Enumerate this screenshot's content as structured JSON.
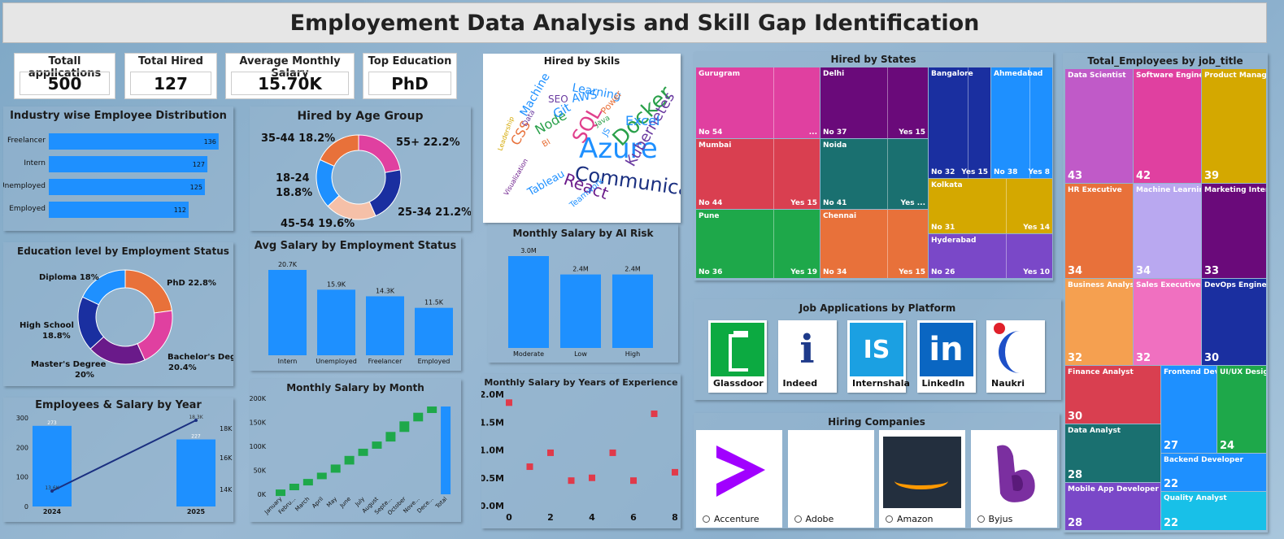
{
  "title": "Employement Data Analysis and Skill Gap Identification",
  "kpis": [
    {
      "label": "Totall applications",
      "value": "500"
    },
    {
      "label": "Total Hired",
      "value": "127"
    },
    {
      "label": "Average Monthly Salary",
      "value": "15.70K"
    },
    {
      "label": "Top Education",
      "value": "PhD"
    }
  ],
  "industry": {
    "title": "Industry wise Employee Distribution",
    "chart_data": {
      "type": "bar",
      "categories": [
        "Freelancer",
        "Intern",
        "Unemployed",
        "Employed"
      ],
      "values": [
        136,
        127,
        125,
        112
      ]
    }
  },
  "age_group": {
    "title": "Hired by Age Group",
    "chart_data": {
      "type": "pie",
      "labels": [
        "55+",
        "25-34",
        "45-54",
        "18-24",
        "35-44"
      ],
      "values": [
        22.2,
        21.2,
        19.6,
        18.8,
        18.2
      ],
      "label_text": [
        "55+ 22.2%",
        "25-34 21.2%",
        "45-54 19.6%",
        "18-24",
        "18.8%",
        "35-44 18.2%"
      ],
      "colors": [
        "#e040a0",
        "#1a2fa0",
        "#f5c0a8",
        "#1e90ff",
        "#e8713a"
      ]
    }
  },
  "skills": {
    "title": "Hired by Skils",
    "words": [
      {
        "t": "Azure",
        "s": 34,
        "c": "#1e90ff"
      },
      {
        "t": "Communication",
        "s": 24,
        "c": "#1a2f80"
      },
      {
        "t": "Docker",
        "s": 26,
        "c": "#2aa04a"
      },
      {
        "t": "SQL",
        "s": 24,
        "c": "#e0408c"
      },
      {
        "t": "Kubernetes",
        "s": 18,
        "c": "#6a3aa0"
      },
      {
        "t": "React",
        "s": 20,
        "c": "#6a1a8a"
      },
      {
        "t": "Excel",
        "s": 16,
        "c": "#1e90ff"
      },
      {
        "t": "Node",
        "s": 16,
        "c": "#2aa04a"
      },
      {
        "t": "CSS",
        "s": 16,
        "c": "#e8713a"
      },
      {
        "t": "Git",
        "s": 15,
        "c": "#1e90ff"
      },
      {
        "t": "AWS",
        "s": 14,
        "c": "#1e90ff"
      },
      {
        "t": "Learning",
        "s": 14,
        "c": "#1e90ff"
      },
      {
        "t": "Machine",
        "s": 14,
        "c": "#1e90ff"
      },
      {
        "t": "SEO",
        "s": 12,
        "c": "#6a3aa0"
      },
      {
        "t": "Tableau",
        "s": 13,
        "c": "#1e90ff"
      },
      {
        "t": "Power",
        "s": 11,
        "c": "#e8713a"
      },
      {
        "t": "BI",
        "s": 10,
        "c": "#e8713a"
      },
      {
        "t": "JS",
        "s": 10,
        "c": "#1e90ff"
      },
      {
        "t": "Java",
        "s": 9,
        "c": "#2aa04a"
      },
      {
        "t": "Data",
        "s": 9,
        "c": "#6a3aa0"
      },
      {
        "t": "Teamwork",
        "s": 10,
        "c": "#1e90ff"
      },
      {
        "t": "Visualization",
        "s": 8,
        "c": "#6a1a8a"
      },
      {
        "t": "Leadership",
        "s": 8,
        "c": "#d4a800"
      }
    ]
  },
  "education": {
    "title": "Education level by Employment Status",
    "chart_data": {
      "type": "pie",
      "labels": [
        "PhD",
        "Bachelor's Degree",
        "Master's Degree",
        "High School",
        "Diploma"
      ],
      "values": [
        22.8,
        20.4,
        20,
        18.8,
        18
      ],
      "label_text": [
        "PhD 22.8%",
        "Bachelor's Degree",
        "20.4%",
        "Master's Degree",
        "20%",
        "High School",
        "18.8%",
        "Diploma 18%"
      ],
      "colors": [
        "#e8713a",
        "#e040a0",
        "#6a1a8a",
        "#1a2fa0",
        "#1e90ff"
      ]
    }
  },
  "avg_salary": {
    "title": "Avg Salary by Employment Status",
    "chart_data": {
      "type": "bar",
      "categories": [
        "Intern",
        "Unemployed",
        "Freelancer",
        "Employed"
      ],
      "values": [
        20.7,
        15.9,
        14.3,
        11.5
      ],
      "labels": [
        "20.7K",
        "15.9K",
        "14.3K",
        "11.5K"
      ]
    }
  },
  "ai_risk": {
    "title": "Monthly Salary by AI Risk",
    "chart_data": {
      "type": "bar",
      "categories": [
        "Moderate",
        "Low",
        "High"
      ],
      "values": [
        3.0,
        2.4,
        2.4
      ],
      "labels": [
        "3.0M",
        "2.4M",
        "2.4M"
      ]
    }
  },
  "emp_year": {
    "title": "Employees & Salary by Year",
    "chart_data": {
      "type": "bar",
      "categories": [
        "2024",
        "2025"
      ],
      "values": [
        273,
        227
      ],
      "line_values": [
        13.6,
        18.3
      ],
      "line_labels": [
        "13.6K",
        "18.3K"
      ],
      "y_ticks": [
        "0",
        "100",
        "200",
        "300"
      ],
      "y2_ticks": [
        "14K",
        "16K",
        "18K"
      ]
    }
  },
  "monthly": {
    "title": "Monthly Salary by Month",
    "chart_data": {
      "type": "bar",
      "categories": [
        "January",
        "Febru...",
        "March",
        "April",
        "May",
        "June",
        "July",
        "August",
        "Septe...",
        "October",
        "Nove...",
        "Dece...",
        "Total"
      ],
      "y_ticks": [
        "0K",
        "50K",
        "100K",
        "150K",
        "200K"
      ],
      "values": [
        10,
        22,
        32,
        45,
        62,
        80,
        95,
        110,
        130,
        152,
        170,
        183,
        183
      ]
    }
  },
  "experience": {
    "title": "Monthly Salary by Years of Experience",
    "chart_data": {
      "type": "scatter",
      "y_ticks": [
        "0.0M",
        "0.5M",
        "1.0M",
        "1.5M",
        "2.0M"
      ],
      "x_ticks": [
        "0",
        "2",
        "4",
        "6",
        "8"
      ],
      "points": [
        [
          0,
          1.85
        ],
        [
          1,
          0.7
        ],
        [
          2,
          0.95
        ],
        [
          3,
          0.45
        ],
        [
          4,
          0.5
        ],
        [
          5,
          0.95
        ],
        [
          6,
          0.45
        ],
        [
          7,
          1.65
        ],
        [
          8,
          0.6
        ]
      ]
    }
  },
  "states": {
    "title": "Hired by States",
    "tiles": [
      {
        "name": "Gurugram",
        "no": "No 54",
        "yes": "...",
        "c": "#e040a0"
      },
      {
        "name": "Delhi",
        "no": "No 37",
        "yes": "Yes 15",
        "c": "#6a0a7a"
      },
      {
        "name": "Bangalore",
        "no": "No 32",
        "yes": "Yes 15",
        "c": "#1a2fa0"
      },
      {
        "name": "Ahmedabad",
        "no": "No 38",
        "yes": "Yes 8",
        "c": "#1e90ff"
      },
      {
        "name": "Mumbai",
        "no": "No 44",
        "yes": "Yes 15",
        "c": "#d93f50"
      },
      {
        "name": "Noida",
        "no": "No 41",
        "yes": "Yes ...",
        "c": "#1a7070"
      },
      {
        "name": "Kolkata",
        "no": "No 31",
        "yes": "Yes 14",
        "c": "#d4a800"
      },
      {
        "name": "Pune",
        "no": "No 36",
        "yes": "Yes 19",
        "c": "#1ea84a"
      },
      {
        "name": "Chennai",
        "no": "No 34",
        "yes": "Yes 15",
        "c": "#e8713a"
      },
      {
        "name": "Hyderabad",
        "no": "No 26",
        "yes": "Yes 10",
        "c": "#7a48c8"
      }
    ]
  },
  "jobs": {
    "title": "Total_Employees by job_title",
    "tiles": [
      {
        "name": "Data Scientist",
        "v": "43",
        "c": "#c05ac8"
      },
      {
        "name": "Software Engineer",
        "v": "42",
        "c": "#e040a0"
      },
      {
        "name": "Product Manager",
        "v": "39",
        "c": "#d4a800"
      },
      {
        "name": "HR Executive",
        "v": "34",
        "c": "#e8713a"
      },
      {
        "name": "Machine Learnin...",
        "v": "34",
        "c": "#b9a8f0"
      },
      {
        "name": "Marketing Intern",
        "v": "33",
        "c": "#6a0a7a"
      },
      {
        "name": "Business Analyst",
        "v": "32",
        "c": "#f5a050"
      },
      {
        "name": "Sales Executive",
        "v": "32",
        "c": "#f070c0"
      },
      {
        "name": "DevOps Engineer",
        "v": "30",
        "c": "#1a2fa0"
      },
      {
        "name": "Finance Analyst",
        "v": "30",
        "c": "#d93f50"
      },
      {
        "name": "Frontend Dev...",
        "v": "27",
        "c": "#1e90ff"
      },
      {
        "name": "UI/UX Desig...",
        "v": "24",
        "c": "#1ea84a"
      },
      {
        "name": "Data Analyst",
        "v": "28",
        "c": "#1a7070"
      },
      {
        "name": "Backend Developer",
        "v": "22",
        "c": "#1e90ff"
      },
      {
        "name": "Mobile App Developer",
        "v": "28",
        "c": "#7a48c8"
      },
      {
        "name": "Quality Analyst",
        "v": "22",
        "c": "#18c0e8"
      }
    ]
  },
  "platforms": {
    "title": "Job Applications by Platform",
    "items": [
      {
        "label": "Glassdoor",
        "icon": "glassdoor-icon",
        "c": "#0caa41"
      },
      {
        "label": "Indeed",
        "icon": "indeed-icon",
        "c": "#1e3a8a"
      },
      {
        "label": "Internshala",
        "icon": "internshala-icon",
        "c": "#1ba0e2"
      },
      {
        "label": "LinkedIn",
        "icon": "linkedin-icon",
        "c": "#0a66c2"
      },
      {
        "label": "Naukri",
        "icon": "naukri-icon",
        "c": "#1e50c8"
      }
    ]
  },
  "companies": {
    "title": "Hiring Companies",
    "items": [
      {
        "label": "Accenture",
        "icon": "accenture-logo"
      },
      {
        "label": "Adobe",
        "icon": "adobe-logo"
      },
      {
        "label": "Amazon",
        "icon": "amazon-logo"
      },
      {
        "label": "Byjus",
        "icon": "byjus-logo"
      }
    ]
  }
}
